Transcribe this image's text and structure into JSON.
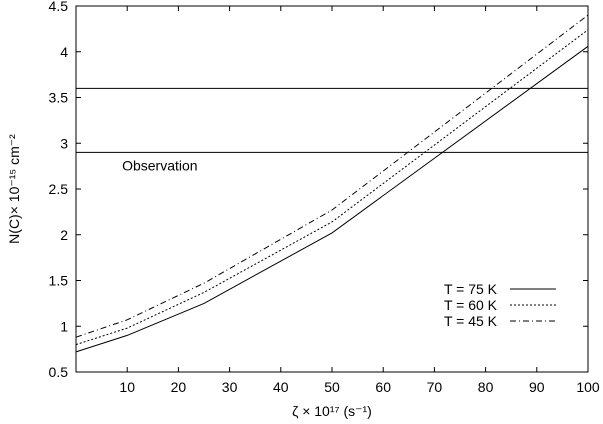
{
  "chart_data": {
    "type": "line",
    "xlabel": "ζ × 10¹⁷ (s⁻¹)",
    "ylabel": "N(C)× 10⁻¹⁵ cm⁻²",
    "xlim": [
      0,
      100
    ],
    "ylim": [
      0.5,
      4.5
    ],
    "xticks": [
      10,
      20,
      30,
      40,
      50,
      60,
      70,
      80,
      90,
      100
    ],
    "yticks": [
      0.5,
      1,
      1.5,
      2,
      2.5,
      3,
      3.5,
      4,
      4.5
    ],
    "grid": false,
    "legend_position": "bottom-right",
    "series": [
      {
        "name": "T = 75 K",
        "style": "solid",
        "x": [
          0,
          10,
          25,
          50,
          100
        ],
        "y": [
          0.72,
          0.9,
          1.25,
          2.02,
          4.06
        ]
      },
      {
        "name": "T = 60 K",
        "style": "dotted",
        "x": [
          0,
          10,
          25,
          50,
          100
        ],
        "y": [
          0.8,
          0.98,
          1.37,
          2.14,
          4.24
        ]
      },
      {
        "name": "T = 45 K",
        "style": "dashdot",
        "x": [
          0,
          10,
          25,
          50,
          100
        ],
        "y": [
          0.88,
          1.07,
          1.47,
          2.27,
          4.4
        ]
      }
    ],
    "hlines": [
      2.9,
      3.6
    ],
    "annotations": [
      {
        "text": "Observation",
        "x": 9,
        "y": 2.7
      }
    ]
  }
}
